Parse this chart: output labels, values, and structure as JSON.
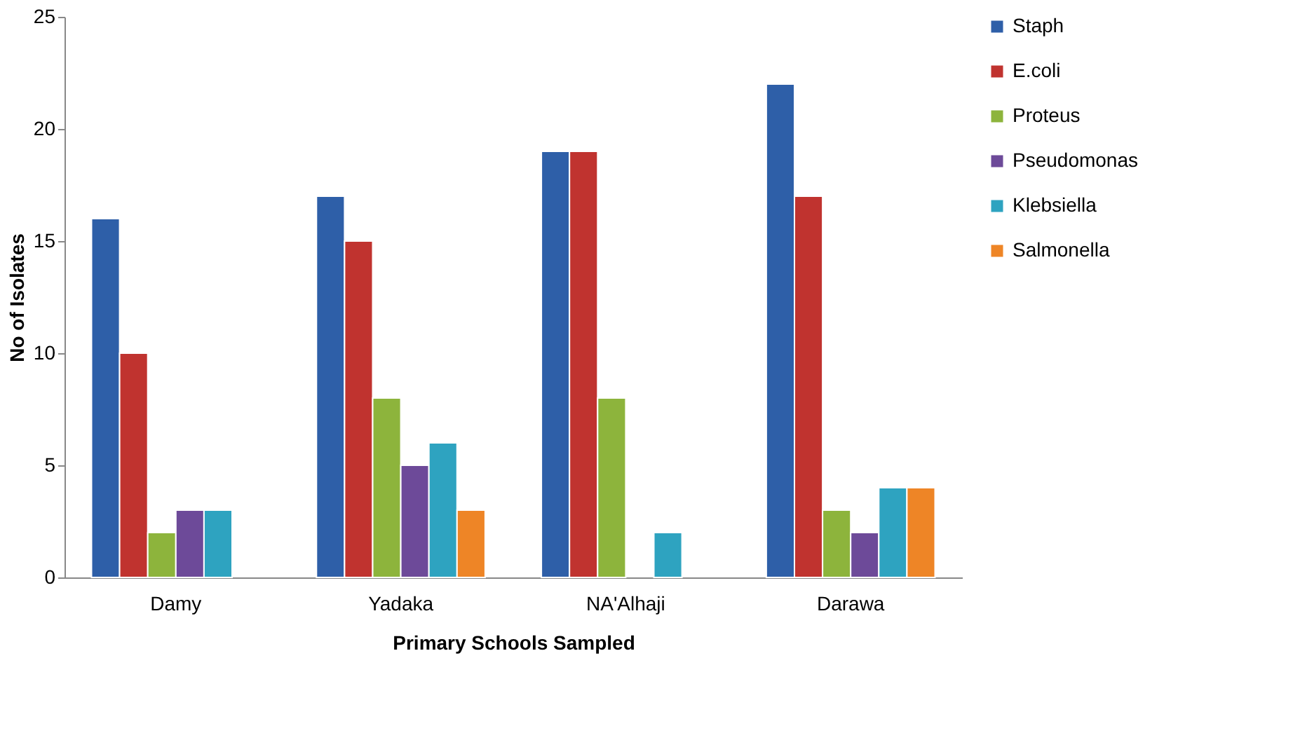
{
  "chart_data": {
    "type": "bar",
    "xlabel": "Primary Schools Sampled",
    "ylabel": "No of Isolates",
    "categories": [
      "Damy",
      "Yadaka",
      "NA'Alhaji",
      "Darawa"
    ],
    "series": [
      {
        "name": "Staph",
        "color": "#2e5fa8",
        "values": [
          16,
          17,
          19,
          22
        ]
      },
      {
        "name": "E.coli",
        "color": "#c0332f",
        "values": [
          10,
          15,
          19,
          17
        ]
      },
      {
        "name": "Proteus",
        "color": "#8db43c",
        "values": [
          2,
          8,
          8,
          3
        ]
      },
      {
        "name": "Pseudomonas",
        "color": "#6d4a99",
        "values": [
          3,
          5,
          null,
          2
        ]
      },
      {
        "name": "Klebsiella",
        "color": "#2ea3c0",
        "values": [
          3,
          6,
          2,
          4
        ]
      },
      {
        "name": "Salmonella",
        "color": "#ee8526",
        "values": [
          null,
          3,
          null,
          4
        ]
      }
    ],
    "ylim": [
      0,
      25
    ],
    "yticks": [
      0,
      5,
      10,
      15,
      20,
      25
    ],
    "grid": false,
    "legend": "right"
  }
}
